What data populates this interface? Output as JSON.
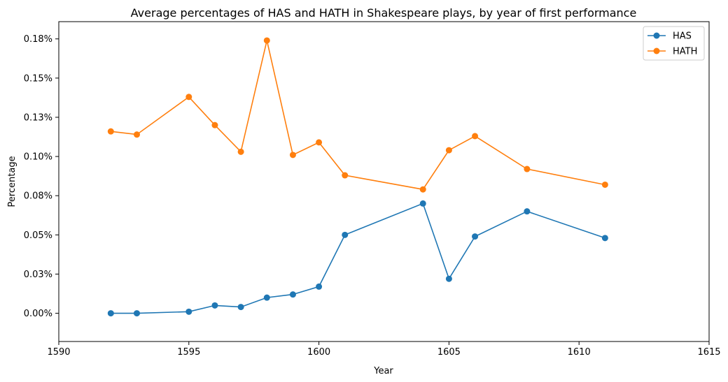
{
  "chart_data": {
    "type": "line",
    "title": "Average percentages of HAS and HATH in Shakespeare plays, by year of first performance",
    "xlabel": "Year",
    "ylabel": "Percentage",
    "xlim": [
      1590,
      1615
    ],
    "ylim": [
      -0.00018,
      0.00186
    ],
    "xticks": [
      1590,
      1595,
      1600,
      1605,
      1610,
      1615
    ],
    "yticks": [
      0,
      0.00025,
      0.0005,
      0.00075,
      0.001,
      0.00125,
      0.0015,
      0.00175
    ],
    "ytick_labels": [
      "0.00%",
      "0.03%",
      "0.05%",
      "0.08%",
      "0.10%",
      "0.13%",
      "0.15%",
      "0.18%"
    ],
    "grid": false,
    "legend_position": "top-right",
    "series": [
      {
        "name": "HAS",
        "color": "#1f77b4",
        "x": [
          1592,
          1593,
          1595,
          1596,
          1597,
          1598,
          1599,
          1600,
          1601,
          1604,
          1605,
          1606,
          1608,
          1611
        ],
        "y": [
          0.0,
          0.0,
          1e-05,
          5e-05,
          4e-05,
          0.0001,
          0.00012,
          0.00017,
          0.0005,
          0.0007,
          0.00022,
          0.00049,
          0.00065,
          0.00048
        ]
      },
      {
        "name": "HATH",
        "color": "#ff7f0e",
        "x": [
          1592,
          1593,
          1595,
          1596,
          1597,
          1598,
          1599,
          1600,
          1601,
          1604,
          1605,
          1606,
          1608,
          1611
        ],
        "y": [
          0.00116,
          0.00114,
          0.00138,
          0.0012,
          0.00103,
          0.00174,
          0.00101,
          0.00109,
          0.00088,
          0.00079,
          0.00104,
          0.00113,
          0.00092,
          0.00082
        ]
      }
    ]
  }
}
